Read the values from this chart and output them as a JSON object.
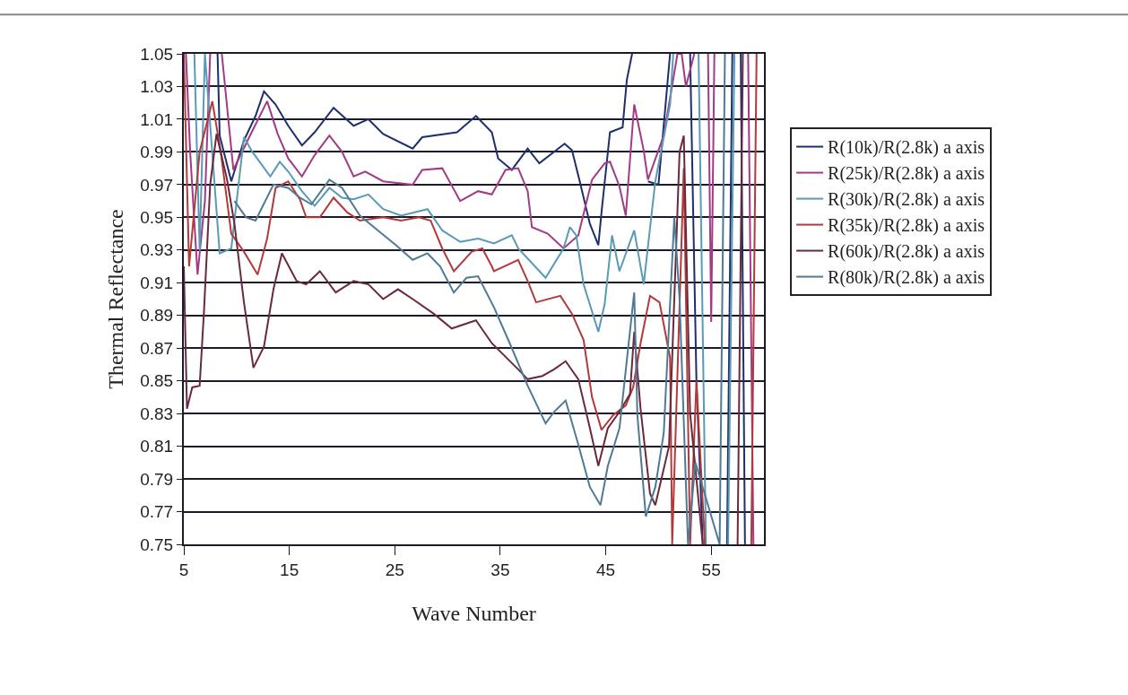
{
  "chart_data": {
    "type": "line",
    "xlabel": "Wave Number",
    "ylabel": "Thermal Reflectance",
    "xlim": [
      5,
      60
    ],
    "xticks": [
      5,
      15,
      25,
      35,
      45,
      55
    ],
    "ylim": [
      0.75,
      1.05
    ],
    "yticks": [
      0.75,
      0.77,
      0.79,
      0.81,
      0.83,
      0.85,
      0.87,
      0.89,
      0.91,
      0.93,
      0.95,
      0.97,
      0.99,
      1.01,
      1.03,
      1.05
    ],
    "grid": "y",
    "legend": "right",
    "marker": "none",
    "line_style": "solid",
    "series": [
      {
        "name": "R(10k)/R(2.8k) a axis",
        "color": "#1f2f6e",
        "x": [
          8.2,
          8.4,
          9.5,
          10.7,
          11.8,
          12.6,
          13.7,
          14.9,
          16.2,
          17.4,
          19.2,
          21.1,
          22.5,
          23.9,
          26.7,
          27.6,
          30.9,
          32.7,
          34.2,
          34.8,
          36.1,
          37.6,
          38.7,
          41.1,
          41.8,
          42.5,
          43.5,
          44.3,
          44.6,
          45.4,
          46.6,
          47.0,
          47.5,
          48.0,
          48.6,
          49.0,
          50.0,
          51.1,
          51.5,
          53.0,
          53.6,
          54.2,
          54.6,
          56.5,
          57.0,
          57.4,
          57.8,
          58.2
        ],
        "values": [
          1.05,
          1.0,
          0.972,
          0.997,
          1.012,
          1.027,
          1.019,
          1.006,
          0.994,
          1.002,
          1.017,
          1.006,
          1.01,
          1.001,
          0.992,
          0.999,
          1.002,
          1.012,
          1.002,
          0.986,
          0.979,
          0.992,
          0.983,
          0.995,
          0.991,
          0.973,
          0.946,
          0.933,
          0.953,
          1.002,
          1.005,
          1.034,
          1.05,
          null,
          null,
          0.972,
          0.97,
          1.05,
          null,
          1.05,
          0.85,
          0.75,
          null,
          0.75,
          1.05,
          null,
          1.05,
          0.75
        ]
      },
      {
        "name": "R(25k)/R(2.8k) a axis",
        "color": "#a23a86",
        "x": [
          5.2,
          5.6,
          6.3,
          7.0,
          7.5,
          8.0,
          8.6,
          9.7,
          11.2,
          12.9,
          13.9,
          14.9,
          16.2,
          17.4,
          18.8,
          20.0,
          21.1,
          22.2,
          23.9,
          26.7,
          27.6,
          29.5,
          31.2,
          32.9,
          34.2,
          35.5,
          36.7,
          37.6,
          38.0,
          39.5,
          41.0,
          42.4,
          43.7,
          44.9,
          45.4,
          46.3,
          46.9,
          47.7,
          48.6,
          49.0,
          50.5,
          51.8,
          52.2,
          52.6,
          53.4,
          54.0,
          54.7,
          55.0,
          55.3,
          56.0,
          58.5,
          59.0
        ],
        "values": [
          1.05,
          0.99,
          0.915,
          0.96,
          1.05,
          null,
          1.05,
          0.979,
          0.999,
          1.021,
          1.001,
          0.986,
          0.975,
          0.988,
          1.0,
          0.99,
          0.975,
          0.978,
          0.972,
          0.97,
          0.979,
          0.98,
          0.96,
          0.966,
          0.964,
          0.979,
          0.98,
          0.966,
          0.944,
          0.94,
          0.931,
          0.939,
          0.973,
          0.983,
          0.984,
          0.969,
          0.951,
          1.019,
          0.991,
          0.973,
          1.0,
          1.05,
          1.05,
          1.03,
          1.05,
          null,
          1.05,
          0.886,
          1.05,
          null,
          1.05,
          0.75
        ]
      },
      {
        "name": "R(30k)/R(2.8k) a axis",
        "color": "#5a9ab5",
        "x": [
          6.0,
          6.5,
          7.0,
          8.4,
          9.5,
          10.7,
          11.5,
          13.2,
          14.1,
          14.9,
          16.2,
          17.4,
          18.8,
          20.0,
          21.1,
          22.5,
          23.9,
          25.6,
          28.1,
          29.5,
          31.2,
          32.9,
          34.4,
          36.1,
          36.7,
          39.3,
          41.0,
          41.6,
          42.2,
          42.9,
          44.3,
          44.9,
          45.6,
          46.3,
          47.7,
          48.6,
          49.7,
          51.1,
          51.4,
          53.2,
          53.8,
          54.5,
          56.0,
          56.6,
          57.2
        ],
        "values": [
          1.05,
          0.93,
          1.05,
          0.928,
          0.931,
          0.999,
          0.99,
          0.975,
          0.984,
          0.978,
          0.966,
          0.957,
          0.968,
          0.962,
          0.961,
          0.964,
          0.955,
          0.951,
          0.955,
          0.942,
          0.935,
          0.937,
          0.934,
          0.939,
          0.931,
          0.913,
          0.931,
          0.944,
          0.939,
          0.909,
          0.88,
          0.897,
          0.939,
          0.917,
          0.942,
          0.909,
          0.972,
          1.019,
          1.05,
          null,
          1.05,
          0.75,
          null,
          0.75,
          1.05
        ]
      },
      {
        "name": "R(35k)/R(2.8k) a axis",
        "color": "#b23a3a",
        "x": [
          5.0,
          5.5,
          6.5,
          7.7,
          8.5,
          9.5,
          10.7,
          12.0,
          12.9,
          13.7,
          14.9,
          16.0,
          16.6,
          17.9,
          19.2,
          20.5,
          21.7,
          23.9,
          25.6,
          27.3,
          28.4,
          29.5,
          30.6,
          32.3,
          33.3,
          34.2,
          34.4,
          36.7,
          37.6,
          38.4,
          40.7,
          41.8,
          42.9,
          43.7,
          44.6,
          45.7,
          46.9,
          47.6,
          48.3,
          49.2,
          50.1,
          51.1,
          51.3,
          52.4,
          53.0,
          53.6,
          54.4,
          55.5,
          58.8,
          59.3
        ],
        "values": [
          1.05,
          0.92,
          0.99,
          1.021,
          0.99,
          0.94,
          0.929,
          0.915,
          0.937,
          0.968,
          0.972,
          0.961,
          0.95,
          0.95,
          0.962,
          0.953,
          0.948,
          0.95,
          0.948,
          0.95,
          0.948,
          0.931,
          0.917,
          0.929,
          0.931,
          0.92,
          0.917,
          0.924,
          0.911,
          0.898,
          0.902,
          0.891,
          0.875,
          0.84,
          0.82,
          0.829,
          0.835,
          0.846,
          0.873,
          0.902,
          0.898,
          0.864,
          0.75,
          0.98,
          0.75,
          0.85,
          0.75,
          null,
          0.75,
          1.05
        ]
      },
      {
        "name": "R(60k)/R(2.8k) a axis",
        "color": "#6b2a3c",
        "x": [
          5.0,
          5.3,
          5.8,
          6.5,
          6.9,
          7.5,
          8.1,
          9.1,
          9.8,
          10.7,
          11.6,
          12.6,
          13.5,
          14.3,
          15.7,
          16.6,
          17.9,
          19.4,
          21.1,
          22.5,
          23.9,
          25.3,
          26.7,
          28.7,
          30.4,
          32.7,
          34.2,
          36.7,
          37.6,
          39.0,
          40.1,
          41.2,
          42.4,
          43.5,
          44.3,
          45.2,
          46.3,
          47.3,
          47.7,
          48.3,
          49.2,
          49.7,
          51.0,
          52.0,
          52.4,
          53.0,
          54.2,
          55.0,
          57.5,
          58.0
        ],
        "values": [
          0.92,
          0.833,
          0.846,
          0.847,
          0.891,
          0.97,
          1.001,
          0.973,
          0.946,
          0.898,
          0.858,
          0.871,
          0.906,
          0.928,
          0.911,
          0.909,
          0.917,
          0.904,
          0.911,
          0.909,
          0.9,
          0.906,
          0.9,
          0.891,
          0.882,
          0.887,
          0.873,
          0.857,
          0.851,
          0.853,
          0.857,
          0.862,
          0.851,
          0.821,
          0.798,
          0.821,
          0.831,
          0.842,
          0.88,
          0.833,
          0.781,
          0.774,
          0.81,
          0.99,
          1.0,
          0.83,
          0.75,
          null,
          0.75,
          1.05
        ]
      },
      {
        "name": "R(80k)/R(2.8k) a axis",
        "color": "#4f7a96",
        "x": [
          9.8,
          10.9,
          11.8,
          13.5,
          14.9,
          16.0,
          17.1,
          18.8,
          20.0,
          21.7,
          23.4,
          25.1,
          26.7,
          28.1,
          29.3,
          30.6,
          31.8,
          32.9,
          34.4,
          35.9,
          37.6,
          39.3,
          40.1,
          41.2,
          42.4,
          43.5,
          44.5,
          45.2,
          46.3,
          47.7,
          48.0,
          48.8,
          49.7,
          50.5,
          51.5,
          52.0,
          52.8,
          53.5,
          55.8,
          56.3
        ],
        "values": [
          0.96,
          0.95,
          0.948,
          0.97,
          0.968,
          0.962,
          0.958,
          0.973,
          0.968,
          0.951,
          0.942,
          0.933,
          0.924,
          0.928,
          0.92,
          0.904,
          0.913,
          0.914,
          0.895,
          0.873,
          0.847,
          0.824,
          0.831,
          0.838,
          0.811,
          0.785,
          0.774,
          0.798,
          0.821,
          0.904,
          0.829,
          0.767,
          0.785,
          0.818,
          0.95,
          0.9,
          0.75,
          0.8,
          0.75,
          1.05
        ]
      }
    ]
  }
}
